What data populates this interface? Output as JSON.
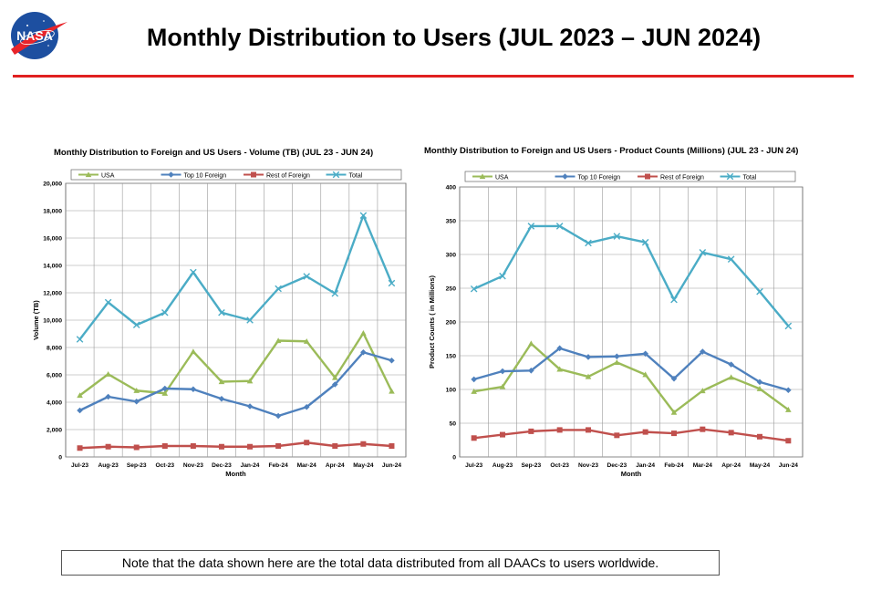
{
  "header": {
    "logo_text": "NASA",
    "title": "Monthly Distribution to Users (JUL 2023 – JUN 2024)"
  },
  "chart_data": [
    {
      "type": "line",
      "title": "Monthly Distribution to Foreign and US Users - Volume  (TB) (JUL 23 - JUN 24)",
      "xlabel": "Month",
      "ylabel": "Volume (TB)",
      "ylim": [
        0,
        20000
      ],
      "yticks": [
        "0",
        "2,000",
        "4,000",
        "6,000",
        "8,000",
        "10,000",
        "12,000",
        "14,000",
        "16,000",
        "18,000",
        "20,000"
      ],
      "categories": [
        "Jul-23",
        "Aug-23",
        "Sep-23",
        "Oct-23",
        "Nov-23",
        "Dec-23",
        "Jan-24",
        "Feb-24",
        "Mar-24",
        "Apr-24",
        "May-24",
        "Jun-24"
      ],
      "legend_position": "top",
      "grid": true,
      "series": [
        {
          "name": "USA",
          "color": "#9bbb59",
          "marker": "triangle",
          "values": [
            4500,
            6050,
            4850,
            4650,
            7700,
            5500,
            5550,
            8500,
            8450,
            5800,
            9050,
            4800
          ]
        },
        {
          "name": "Top 10 Foreign",
          "color": "#4f81bd",
          "marker": "diamond",
          "values": [
            3400,
            4400,
            4050,
            5000,
            4950,
            4250,
            3700,
            3000,
            3650,
            5300,
            7650,
            7050
          ]
        },
        {
          "name": "Rest of Foreign",
          "color": "#c0504d",
          "marker": "square",
          "values": [
            650,
            750,
            700,
            800,
            800,
            750,
            750,
            800,
            1050,
            800,
            950,
            800
          ]
        },
        {
          "name": "Total",
          "color": "#4bacc6",
          "marker": "x",
          "values": [
            8600,
            11300,
            9650,
            10550,
            13500,
            10550,
            10000,
            12300,
            13200,
            11950,
            17650,
            12700
          ]
        }
      ]
    },
    {
      "type": "line",
      "title": "Monthly Distribution to Foreign and US Users - Product Counts (Millions) (JUL 23 - JUN 24)",
      "xlabel": "Month",
      "ylabel": "Product Counts ( in Millions)",
      "ylim": [
        0,
        400
      ],
      "yticks": [
        "0",
        "50",
        "100",
        "150",
        "200",
        "250",
        "300",
        "350",
        "400"
      ],
      "categories": [
        "Jul-23",
        "Aug-23",
        "Sep-23",
        "Oct-23",
        "Nov-23",
        "Dec-23",
        "Jan-24",
        "Feb-24",
        "Mar-24",
        "Apr-24",
        "May-24",
        "Jun-24"
      ],
      "legend_position": "top",
      "grid": true,
      "series": [
        {
          "name": "USA",
          "color": "#9bbb59",
          "marker": "triangle",
          "values": [
            97,
            104,
            168,
            130,
            119,
            140,
            122,
            66,
            98,
            118,
            101,
            70
          ]
        },
        {
          "name": "Top 10 Foreign",
          "color": "#4f81bd",
          "marker": "diamond",
          "values": [
            115,
            127,
            128,
            161,
            148,
            149,
            153,
            116,
            156,
            137,
            111,
            99
          ]
        },
        {
          "name": "Rest of Foreign",
          "color": "#c0504d",
          "marker": "square",
          "values": [
            28,
            33,
            38,
            40,
            40,
            32,
            37,
            35,
            41,
            36,
            30,
            24
          ]
        },
        {
          "name": "Total",
          "color": "#4bacc6",
          "marker": "x",
          "values": [
            249,
            268,
            342,
            342,
            317,
            327,
            318,
            233,
            303,
            293,
            245,
            194
          ]
        }
      ]
    }
  ],
  "footer": {
    "note": "Note that the data shown here are the total data distributed from all DAACs to users worldwide."
  }
}
